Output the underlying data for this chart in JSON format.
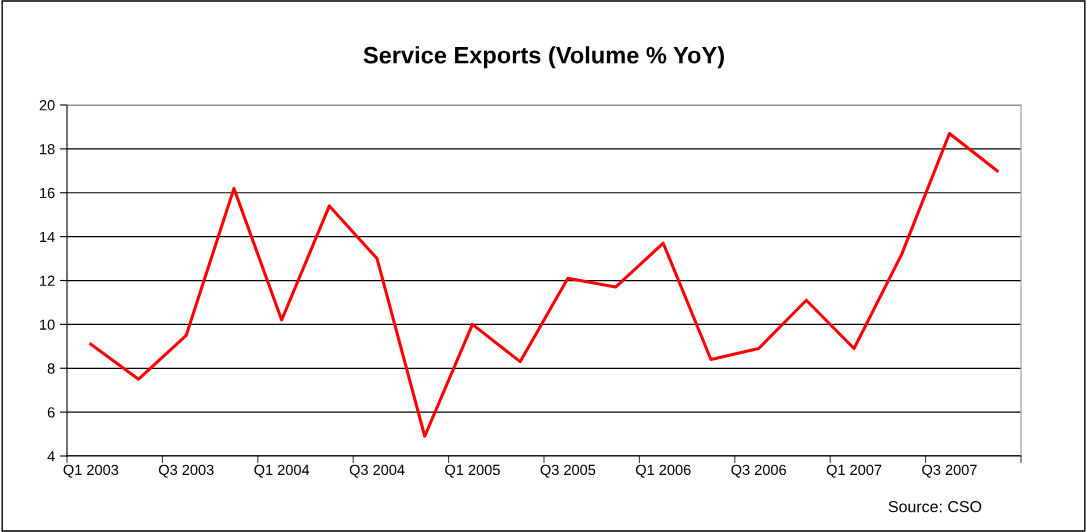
{
  "chart_data": {
    "type": "line",
    "title": "Service Exports (Volume % YoY)",
    "categories": [
      "Q1 2003",
      null,
      "Q3 2003",
      null,
      "Q1 2004",
      null,
      "Q3 2004",
      null,
      "Q1 2005",
      null,
      "Q3 2005",
      null,
      "Q1 2006",
      null,
      "Q3 2006",
      null,
      "Q1 2007",
      null,
      "Q3 2007",
      null
    ],
    "series": [
      {
        "color": "#ff0000",
        "values": [
          9.1,
          7.5,
          9.5,
          16.2,
          10.2,
          15.4,
          13.0,
          4.9,
          10.0,
          8.3,
          12.1,
          11.7,
          13.7,
          8.4,
          8.9,
          11.1,
          8.9,
          13.2,
          18.7,
          17.0
        ]
      }
    ],
    "ylim": [
      4,
      20
    ],
    "yticks": [
      4,
      6,
      8,
      10,
      12,
      14,
      16,
      18,
      20
    ],
    "grid": "y",
    "legend": false,
    "marker": "none",
    "line_style": "solid",
    "annotations": [
      "Source: CSO"
    ]
  }
}
